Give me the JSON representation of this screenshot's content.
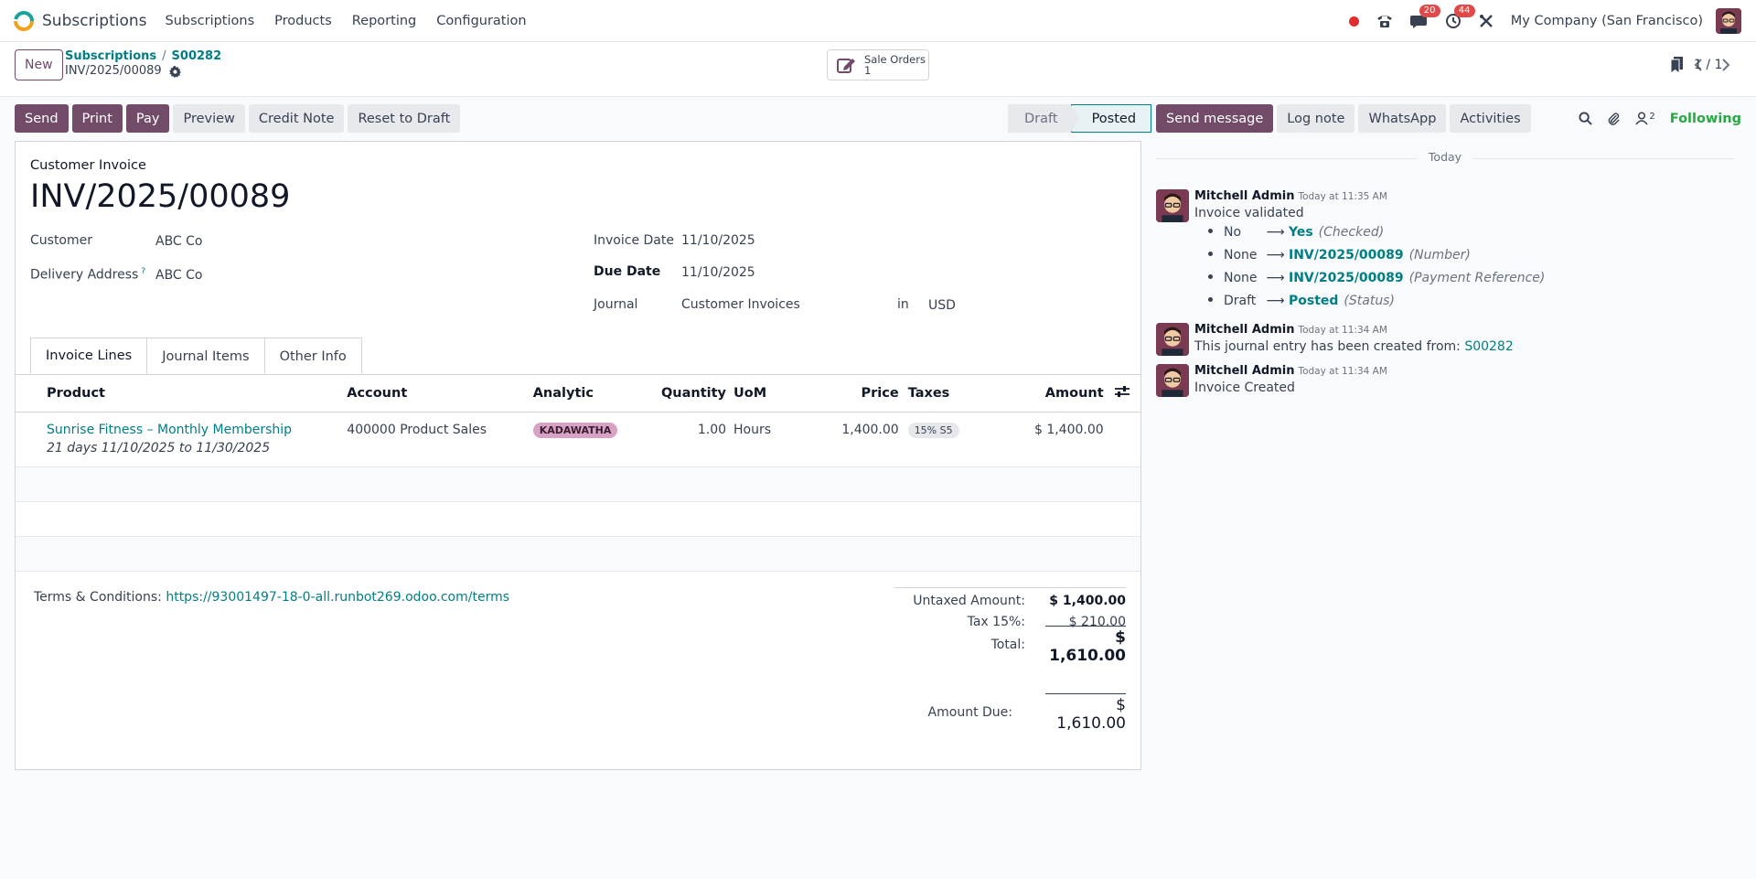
{
  "nav": {
    "app_name": "Subscriptions",
    "menu": [
      "Subscriptions",
      "Products",
      "Reporting",
      "Configuration"
    ],
    "messages_count": "20",
    "activities_count": "44",
    "company": "My Company (San Francisco)"
  },
  "control": {
    "new_label": "New",
    "breadcrumb_parent": "Subscriptions",
    "breadcrumb_sep": "/",
    "breadcrumb_order": "S00282",
    "breadcrumb_current": "INV/2025/00089",
    "smart_button_label": "Sale Orders",
    "smart_button_count": "1",
    "pager_value": "1 / 1"
  },
  "actions": {
    "send": "Send",
    "print": "Print",
    "pay": "Pay",
    "preview": "Preview",
    "credit_note": "Credit Note",
    "reset_to_draft": "Reset to Draft"
  },
  "status": {
    "draft": "Draft",
    "posted": "Posted"
  },
  "invoice": {
    "kind": "Customer Invoice",
    "number": "INV/2025/00089",
    "customer_label": "Customer",
    "customer": "ABC Co",
    "delivery_label": "Delivery Address",
    "delivery_help": "?",
    "delivery": "ABC Co",
    "invoice_date_label": "Invoice Date",
    "invoice_date": "11/10/2025",
    "due_date_label": "Due Date",
    "due_date": "11/10/2025",
    "journal_label": "Journal",
    "journal": "Customer Invoices",
    "in_label": "in",
    "currency": "USD"
  },
  "tabs": [
    "Invoice Lines",
    "Journal Items",
    "Other Info"
  ],
  "lines": {
    "headers": {
      "product": "Product",
      "account": "Account",
      "analytic": "Analytic",
      "quantity": "Quantity",
      "uom": "UoM",
      "price": "Price",
      "taxes": "Taxes",
      "amount": "Amount"
    },
    "rows": [
      {
        "product": "Sunrise Fitness – Monthly Membership",
        "description": "21 days 11/10/2025 to 11/30/2025",
        "account": "400000 Product Sales",
        "analytic": "KADAWATHA",
        "quantity": "1.00",
        "uom": "Hours",
        "price": "1,400.00",
        "taxes": "15% S5",
        "amount": "$ 1,400.00"
      }
    ]
  },
  "terms": {
    "label": "Terms & Conditions:",
    "url": "https://93001497-18-0-all.runbot269.odoo.com/terms"
  },
  "totals": {
    "untaxed_label": "Untaxed Amount:",
    "untaxed": "$ 1,400.00",
    "tax_label": "Tax 15%:",
    "tax": "$ 210.00",
    "total_label": "Total:",
    "total": "$ 1,610.00",
    "due_label": "Amount Due:",
    "due": "$ 1,610.00"
  },
  "chatter": {
    "send_message": "Send message",
    "log_note": "Log note",
    "whatsapp": "WhatsApp",
    "activities": "Activities",
    "followers_count": "2",
    "following": "Following",
    "today": "Today",
    "messages": [
      {
        "author": "Mitchell Admin",
        "time": "Today at 11:35 AM",
        "body": "Invoice validated",
        "tracking": [
          {
            "old": "No",
            "new": "Yes",
            "field": "(Checked)"
          },
          {
            "old": "None",
            "new": "INV/2025/00089",
            "field": "(Number)"
          },
          {
            "old": "None",
            "new": "INV/2025/00089",
            "field": "(Payment Reference)"
          },
          {
            "old": "Draft",
            "new": "Posted",
            "field": "(Status)"
          }
        ]
      },
      {
        "author": "Mitchell Admin",
        "time": "Today at 11:34 AM",
        "body": "This journal entry has been created from:",
        "link": "S00282"
      },
      {
        "author": "Mitchell Admin",
        "time": "Today at 11:34 AM",
        "body": "Invoice Created"
      }
    ]
  },
  "colors": {
    "brand": "#714b67",
    "link": "#017e84",
    "following": "#28a745",
    "badge": "#e04a4a"
  }
}
